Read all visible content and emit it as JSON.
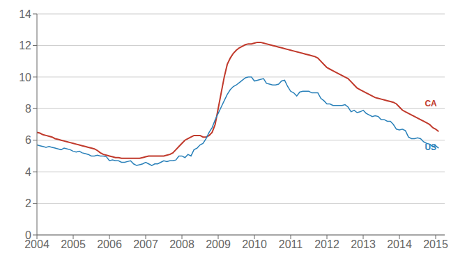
{
  "chart_data": {
    "type": "line",
    "x": [
      2004.0,
      2004.083,
      2004.167,
      2004.25,
      2004.333,
      2004.417,
      2004.5,
      2004.583,
      2004.667,
      2004.75,
      2004.833,
      2004.917,
      2005.0,
      2005.083,
      2005.167,
      2005.25,
      2005.333,
      2005.417,
      2005.5,
      2005.583,
      2005.667,
      2005.75,
      2005.833,
      2005.917,
      2006.0,
      2006.083,
      2006.167,
      2006.25,
      2006.333,
      2006.417,
      2006.5,
      2006.583,
      2006.667,
      2006.75,
      2006.833,
      2006.917,
      2007.0,
      2007.083,
      2007.167,
      2007.25,
      2007.333,
      2007.417,
      2007.5,
      2007.583,
      2007.667,
      2007.75,
      2007.833,
      2007.917,
      2008.0,
      2008.083,
      2008.167,
      2008.25,
      2008.333,
      2008.417,
      2008.5,
      2008.583,
      2008.667,
      2008.75,
      2008.833,
      2008.917,
      2009.0,
      2009.083,
      2009.167,
      2009.25,
      2009.333,
      2009.417,
      2009.5,
      2009.583,
      2009.667,
      2009.75,
      2009.833,
      2009.917,
      2010.0,
      2010.083,
      2010.167,
      2010.25,
      2010.333,
      2010.417,
      2010.5,
      2010.583,
      2010.667,
      2010.75,
      2010.833,
      2010.917,
      2011.0,
      2011.083,
      2011.167,
      2011.25,
      2011.333,
      2011.417,
      2011.5,
      2011.583,
      2011.667,
      2011.75,
      2011.833,
      2011.917,
      2012.0,
      2012.083,
      2012.167,
      2012.25,
      2012.333,
      2012.417,
      2012.5,
      2012.583,
      2012.667,
      2012.75,
      2012.833,
      2012.917,
      2013.0,
      2013.083,
      2013.167,
      2013.25,
      2013.333,
      2013.417,
      2013.5,
      2013.583,
      2013.667,
      2013.75,
      2013.833,
      2013.917,
      2014.0,
      2014.083,
      2014.167,
      2014.25,
      2014.333,
      2014.417,
      2014.5,
      2014.583,
      2014.667,
      2014.75,
      2014.833,
      2014.917,
      2015.0,
      2015.083
    ],
    "series": [
      {
        "color": "#c0392b",
        "values": [
          6.5,
          6.45,
          6.35,
          6.3,
          6.25,
          6.2,
          6.1,
          6.05,
          6.0,
          5.95,
          5.9,
          5.85,
          5.8,
          5.75,
          5.7,
          5.65,
          5.6,
          5.55,
          5.5,
          5.45,
          5.35,
          5.2,
          5.1,
          5.05,
          5.0,
          4.95,
          4.9,
          4.9,
          4.85,
          4.85,
          4.85,
          4.85,
          4.85,
          4.85,
          4.85,
          4.9,
          4.95,
          5.0,
          5.0,
          5.0,
          5.0,
          5.0,
          5.0,
          5.05,
          5.1,
          5.2,
          5.4,
          5.6,
          5.8,
          6.0,
          6.1,
          6.2,
          6.3,
          6.3,
          6.3,
          6.2,
          6.2,
          6.3,
          6.5,
          7.0,
          8.0,
          9.0,
          10.0,
          10.8,
          11.2,
          11.5,
          11.7,
          11.85,
          11.95,
          12.05,
          12.1,
          12.1,
          12.15,
          12.2,
          12.2,
          12.15,
          12.1,
          12.05,
          12.0,
          11.95,
          11.9,
          11.85,
          11.8,
          11.75,
          11.7,
          11.65,
          11.6,
          11.55,
          11.5,
          11.45,
          11.4,
          11.35,
          11.3,
          11.2,
          11.0,
          10.8,
          10.6,
          10.5,
          10.4,
          10.3,
          10.2,
          10.1,
          10.0,
          9.9,
          9.7,
          9.5,
          9.3,
          9.2,
          9.1,
          9.0,
          8.9,
          8.8,
          8.7,
          8.65,
          8.6,
          8.55,
          8.5,
          8.45,
          8.4,
          8.3,
          8.1,
          7.9,
          7.8,
          7.7,
          7.6,
          7.5,
          7.4,
          7.3,
          7.2,
          7.1,
          7.0,
          6.8,
          6.7,
          6.55
        ]
      },
      {
        "color": "#2980b9",
        "values": [
          5.7,
          5.65,
          5.6,
          5.55,
          5.6,
          5.55,
          5.5,
          5.45,
          5.4,
          5.5,
          5.45,
          5.4,
          5.3,
          5.25,
          5.3,
          5.2,
          5.15,
          5.1,
          5.0,
          5.0,
          5.05,
          5.0,
          5.0,
          4.95,
          4.7,
          4.75,
          4.7,
          4.7,
          4.6,
          4.6,
          4.65,
          4.7,
          4.5,
          4.4,
          4.45,
          4.5,
          4.6,
          4.5,
          4.4,
          4.5,
          4.5,
          4.6,
          4.7,
          4.65,
          4.7,
          4.7,
          4.75,
          5.0,
          5.0,
          4.9,
          5.1,
          5.0,
          5.4,
          5.5,
          5.7,
          5.8,
          6.1,
          6.5,
          6.8,
          7.3,
          7.7,
          8.1,
          8.5,
          8.9,
          9.2,
          9.4,
          9.5,
          9.65,
          9.8,
          9.95,
          10.0,
          10.0,
          9.75,
          9.8,
          9.85,
          9.9,
          9.6,
          9.55,
          9.5,
          9.5,
          9.55,
          9.75,
          9.8,
          9.4,
          9.1,
          9.0,
          8.8,
          9.05,
          9.1,
          9.1,
          9.1,
          9.0,
          9.0,
          9.0,
          8.65,
          8.5,
          8.3,
          8.3,
          8.2,
          8.2,
          8.2,
          8.2,
          8.25,
          8.1,
          7.8,
          7.9,
          7.75,
          7.8,
          7.9,
          7.7,
          7.6,
          7.5,
          7.55,
          7.5,
          7.3,
          7.3,
          7.2,
          7.2,
          7.0,
          6.7,
          6.65,
          6.7,
          6.6,
          6.2,
          6.1,
          6.1,
          6.15,
          6.1,
          5.9,
          5.8,
          5.75,
          5.6,
          5.65,
          5.5
        ]
      }
    ],
    "annotations": [
      {
        "text": "CA",
        "x": 2014.7,
        "y": 8.3,
        "color": "#c0392b"
      },
      {
        "text": "US",
        "x": 2014.7,
        "y": 5.55,
        "color": "#2980b9"
      }
    ],
    "xlim": [
      2004.0,
      2015.25
    ],
    "xticks": [
      2004,
      2005,
      2006,
      2007,
      2008,
      2009,
      2010,
      2011,
      2012,
      2013,
      2014,
      2015
    ],
    "ylim": [
      0,
      14
    ],
    "yticks": [
      0,
      2,
      4,
      6,
      8,
      10,
      12,
      14
    ],
    "grid": true
  }
}
